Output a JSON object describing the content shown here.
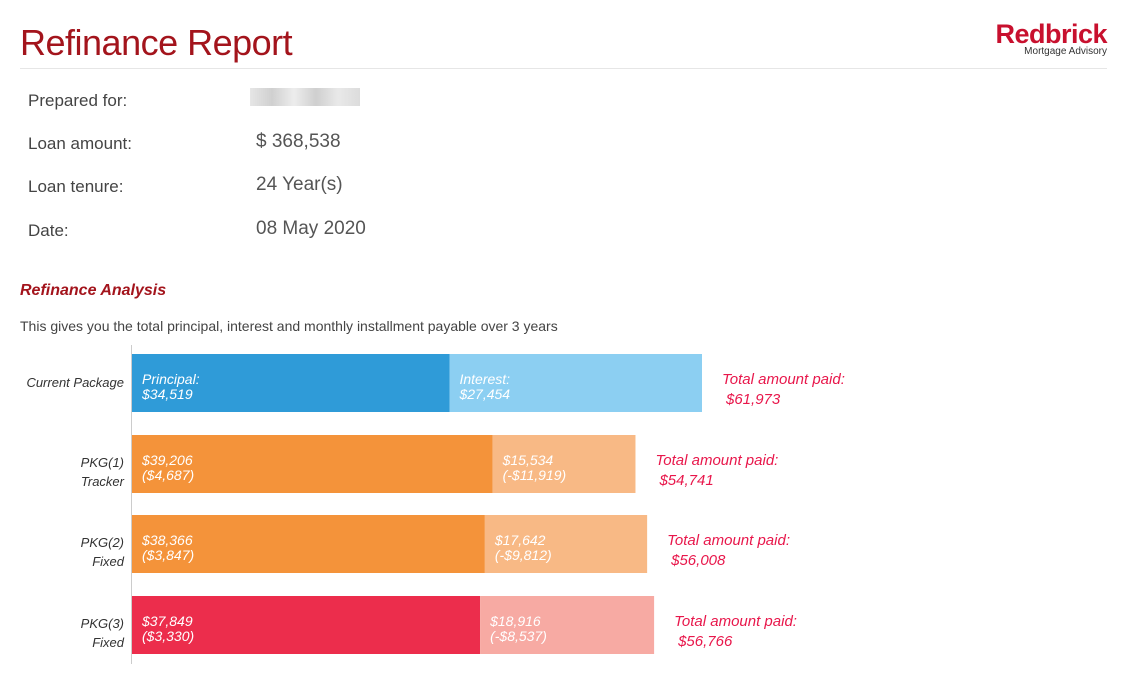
{
  "header": {
    "title": "Refinance Report",
    "logo_brand": "Redbrick",
    "logo_sub": "Mortgage Advisory"
  },
  "info": {
    "prepared_for_label": "Prepared for:",
    "loan_amount_label": "Loan amount:",
    "loan_amount_value": "$ 368,538",
    "loan_tenure_label": "Loan tenure:",
    "loan_tenure_value": "24 Year(s)",
    "date_label": "Date:",
    "date_value": "08 May 2020"
  },
  "section": {
    "title": "Refinance Analysis",
    "description": "This gives you the total principal, interest and monthly installment payable over 3 years"
  },
  "chart_data": {
    "type": "bar",
    "orientation": "horizontal",
    "stacked": true,
    "grid": false,
    "total_label": "Total amount paid:",
    "rows": [
      {
        "label_lines": [
          "Current Package"
        ],
        "principal": 34519,
        "interest": 27454,
        "principal_lines": [
          "Principal:",
          "$34,519"
        ],
        "interest_lines": [
          "Interest:",
          "$27,454"
        ],
        "total": "$61,973",
        "principal_color": "#2f9bd8",
        "interest_color": "#8ccff2"
      },
      {
        "label_lines": [
          "PKG(1)",
          "Tracker"
        ],
        "principal": 39206,
        "interest": 15534,
        "principal_lines": [
          "$39,206",
          "($4,687)"
        ],
        "interest_lines": [
          "$15,534",
          "(-$11,919)"
        ],
        "total": "$54,741",
        "principal_color": "#f4933a",
        "interest_color": "#f8b985"
      },
      {
        "label_lines": [
          "PKG(2)",
          "Fixed"
        ],
        "principal": 38366,
        "interest": 17642,
        "principal_lines": [
          "$38,366",
          "($3,847)"
        ],
        "interest_lines": [
          "$17,642",
          "(-$9,812)"
        ],
        "total": "$56,008",
        "principal_color": "#f4933a",
        "interest_color": "#f8b985"
      },
      {
        "label_lines": [
          "PKG(3)",
          "Fixed"
        ],
        "principal": 37849,
        "interest": 18916,
        "principal_lines": [
          "$37,849",
          "($3,330)"
        ],
        "interest_lines": [
          "$18,916",
          "(-$8,537)"
        ],
        "total": "$56,766",
        "principal_color": "#ec2d4c",
        "interest_color": "#f7aaa3"
      }
    ]
  }
}
